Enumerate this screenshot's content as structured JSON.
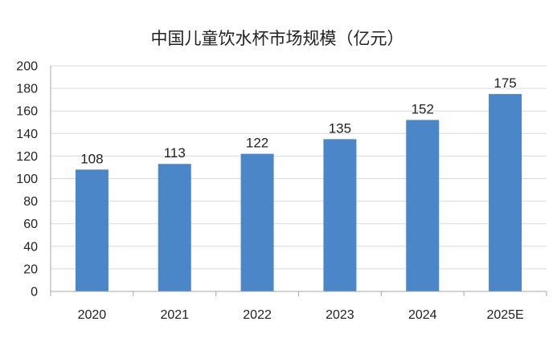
{
  "chart_data": {
    "type": "bar",
    "title": "中国儿童饮水杯市场规模（亿元）",
    "categories": [
      "2020",
      "2021",
      "2022",
      "2023",
      "2024",
      "2025E"
    ],
    "values": [
      108,
      113,
      122,
      135,
      152,
      175
    ],
    "data_labels": [
      "108",
      "113",
      "122",
      "135",
      "152",
      "175"
    ],
    "y_ticks": [
      "0",
      "20",
      "40",
      "60",
      "80",
      "100",
      "120",
      "140",
      "160",
      "180",
      "200"
    ],
    "ylim": [
      0,
      200
    ],
    "xlabel": "",
    "ylabel": "",
    "grid": true,
    "legend": "none",
    "bar_color": "#4a86c8",
    "grid_color": "#d9d9d9",
    "axis_color": "#a6a6a6"
  }
}
